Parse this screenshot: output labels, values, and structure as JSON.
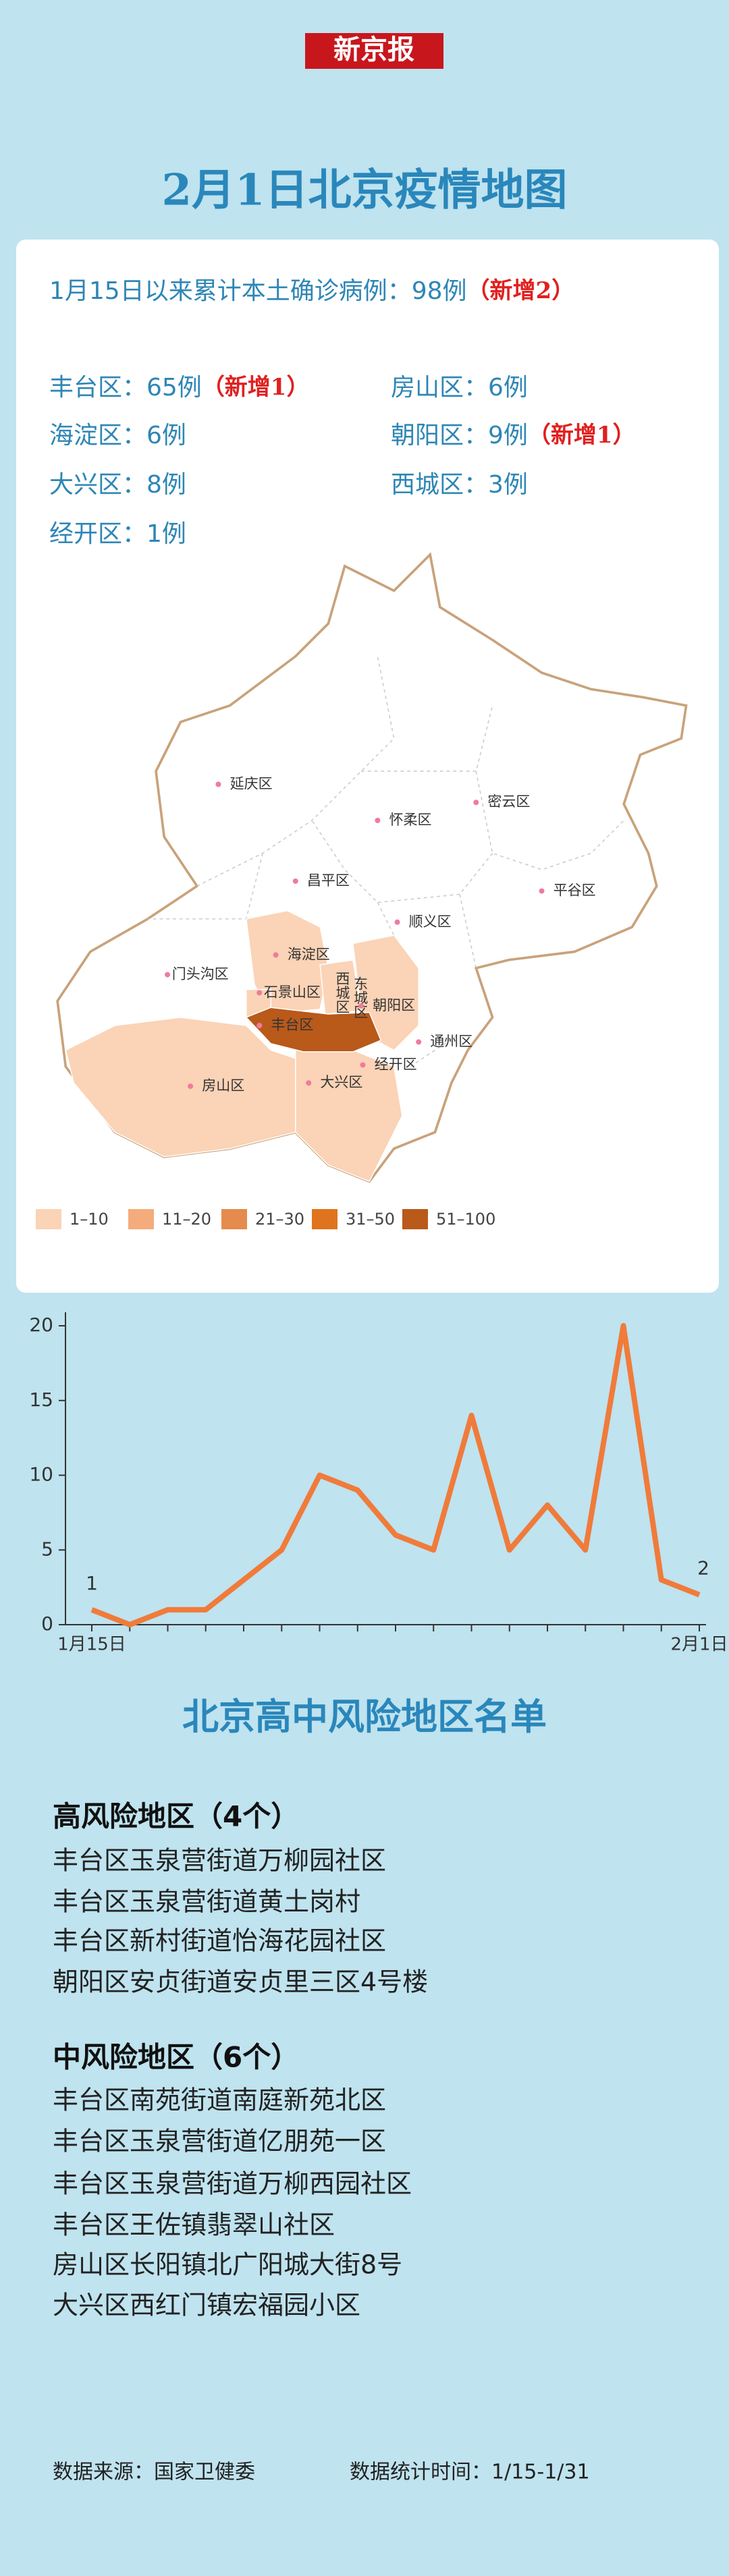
{
  "header": {
    "brand": "新京报",
    "title": "2月1日北京疫情地图"
  },
  "summary": {
    "text": "1月15日以来累计本土确诊病例：98例",
    "new": "（新增2）"
  },
  "districts": [
    {
      "text": "丰台区：65例",
      "new": "（新增1）"
    },
    {
      "text": "房山区：6例"
    },
    {
      "text": "海淀区：6例"
    },
    {
      "text": "朝阳区：9例",
      "new": "（新增1）"
    },
    {
      "text": "大兴区：8例"
    },
    {
      "text": "西城区：3例"
    },
    {
      "text": "经开区：1例"
    }
  ],
  "map": {
    "labels": [
      "延庆区",
      "怀柔区",
      "密云区",
      "昌平区",
      "平谷区",
      "顺义区",
      "门头沟区",
      "海淀区",
      "西城区",
      "东城区",
      "石景山区",
      "朝阳区",
      "丰台区",
      "通州区",
      "经开区",
      "房山区",
      "大兴区"
    ],
    "legend": [
      {
        "label": "1–10",
        "color": "#fbd3b6"
      },
      {
        "label": "11–20",
        "color": "#f4ac7c"
      },
      {
        "label": "21–30",
        "color": "#e58b4e"
      },
      {
        "label": "31–50",
        "color": "#e0741e"
      },
      {
        "label": "51–100",
        "color": "#b9591a"
      }
    ]
  },
  "chart_data": {
    "type": "line",
    "categories": [
      "1月15日",
      null,
      null,
      null,
      null,
      null,
      null,
      null,
      null,
      null,
      null,
      null,
      null,
      null,
      null,
      null,
      "2月1日"
    ],
    "series": [
      {
        "color": "#f07b3a",
        "values": [
          1,
          0,
          1,
          1,
          3,
          5,
          10,
          9,
          6,
          5,
          14,
          5,
          8,
          5,
          20,
          3,
          2
        ]
      }
    ],
    "ylim": [
      0,
      20
    ],
    "yticks": [
      0,
      5,
      10,
      15,
      20
    ]
  },
  "risk": {
    "title": "北京高中风险地区名单",
    "groups": [
      {
        "heading": "高风险地区（4个）",
        "items": [
          "丰台区玉泉营街道万柳园社区",
          "丰台区玉泉营街道黄土岗村",
          "丰台区新村街道怡海花园社区",
          "朝阳区安贞街道安贞里三区4号楼"
        ]
      },
      {
        "heading": "中风险地区（6个）",
        "items": [
          "丰台区南苑街道南庭新苑北区",
          "丰台区玉泉营街道亿朋苑一区",
          "丰台区玉泉营街道万柳西园社区",
          "丰台区王佐镇翡翠山社区",
          "房山区长阳镇北广阳城大街8号",
          "大兴区西红门镇宏福园小区"
        ]
      }
    ]
  },
  "footer": {
    "source": "数据来源：国家卫健委",
    "period": "数据统计时间：1/15-1/31"
  }
}
